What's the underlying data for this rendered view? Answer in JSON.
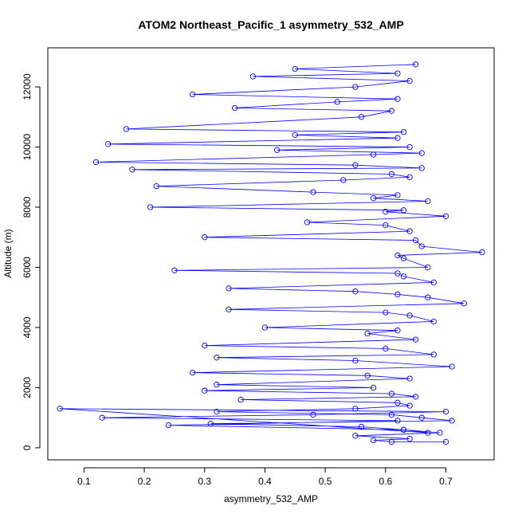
{
  "chart_data": {
    "type": "scatter",
    "title": "ATOM2 Northeast_Pacific_1 asymmetry_532_AMP",
    "xlabel": "asymmetry_532_AMP",
    "ylabel": "Altitude (m)",
    "xlim": [
      0.04,
      0.78
    ],
    "ylim": [
      -400,
      13300
    ],
    "xticks": [
      0.1,
      0.2,
      0.3,
      0.4,
      0.5,
      0.6,
      0.7
    ],
    "xtick_labels": [
      "0.1",
      "0.2",
      "0.3",
      "0.4",
      "0.5",
      "0.6",
      "0.7"
    ],
    "yticks": [
      0,
      2000,
      4000,
      6000,
      8000,
      10000,
      12000
    ],
    "ytick_labels": [
      "0",
      "2000",
      "4000",
      "6000",
      "8000",
      "10000",
      "12000"
    ],
    "marker": "open-circle",
    "connect_points": true,
    "series_color": "#0000ff",
    "grid": false,
    "series": [
      {
        "x": [
          0.65,
          0.45,
          0.62,
          0.38,
          0.64,
          0.55,
          0.28,
          0.62,
          0.52,
          0.35,
          0.61,
          0.56,
          0.17,
          0.63,
          0.45,
          0.62,
          0.14,
          0.64,
          0.42,
          0.66,
          0.58,
          0.12,
          0.55,
          0.66,
          0.18,
          0.61,
          0.64,
          0.53,
          0.22,
          0.48,
          0.62,
          0.58,
          0.67,
          0.21,
          0.63,
          0.6,
          0.7,
          0.47,
          0.6,
          0.64,
          0.3,
          0.65,
          0.66,
          0.76,
          0.62,
          0.63,
          0.67,
          0.25,
          0.62,
          0.63,
          0.68,
          0.34,
          0.55,
          0.62,
          0.67,
          0.73,
          0.34,
          0.6,
          0.64,
          0.68,
          0.4,
          0.62,
          0.57,
          0.65,
          0.3,
          0.6,
          0.68,
          0.32,
          0.55,
          0.71,
          0.28,
          0.57,
          0.64,
          0.32,
          0.58,
          0.3,
          0.61,
          0.65,
          0.36,
          0.62,
          0.64,
          0.55,
          0.32,
          0.61,
          0.66,
          0.71,
          0.31,
          0.56,
          0.63,
          0.67,
          0.06,
          0.7,
          0.48,
          0.13,
          0.62,
          0.24,
          0.63,
          0.69,
          0.55,
          0.64,
          0.58,
          0.61,
          0.7
        ],
        "y": [
          12750,
          12600,
          12450,
          12350,
          12200,
          12000,
          11750,
          11600,
          11500,
          11300,
          11200,
          11000,
          10600,
          10500,
          10400,
          10300,
          10100,
          10000,
          9900,
          9800,
          9750,
          9500,
          9400,
          9300,
          9250,
          9100,
          9000,
          8900,
          8700,
          8500,
          8400,
          8300,
          8200,
          8000,
          7900,
          7850,
          7700,
          7500,
          7400,
          7200,
          7000,
          6900,
          6700,
          6500,
          6400,
          6300,
          6000,
          5900,
          5800,
          5700,
          5500,
          5300,
          5200,
          5100,
          5000,
          4800,
          4600,
          4500,
          4400,
          4200,
          4000,
          3900,
          3800,
          3600,
          3400,
          3300,
          3100,
          3000,
          2900,
          2700,
          2500,
          2400,
          2300,
          2100,
          2000,
          1900,
          1800,
          1700,
          1600,
          1500,
          1400,
          1300,
          1200,
          1100,
          1000,
          900,
          800,
          700,
          600,
          500,
          1300,
          1200,
          1100,
          1000,
          900,
          750,
          600,
          500,
          400,
          300,
          250,
          200,
          200
        ]
      }
    ]
  }
}
